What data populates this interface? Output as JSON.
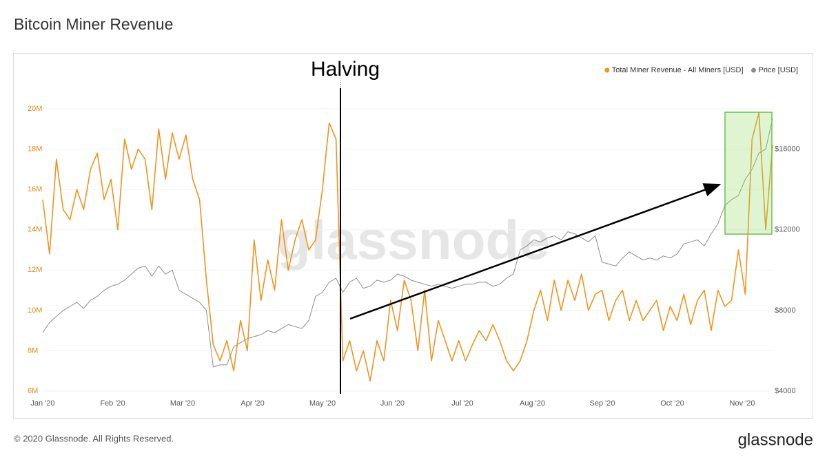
{
  "chart_data": {
    "type": "line",
    "title": "Bitcoin Miner Revenue",
    "annotation": "Halving",
    "watermark": "glassnode",
    "xtick_labels": [
      "Jan '20",
      "Feb '20",
      "Mar '20",
      "Apr '20",
      "May '20",
      "Jun '20",
      "Jul '20",
      "Aug '20",
      "Sep '20",
      "Oct '20",
      "Nov '20"
    ],
    "series": [
      {
        "name": "Total Miner Revenue - All Miners [USD]",
        "color": "#f0931c",
        "axis": "y",
        "values": [
          15500000,
          12800000,
          17500000,
          15000000,
          14500000,
          16000000,
          15000000,
          17000000,
          17800000,
          15500000,
          16500000,
          14000000,
          18500000,
          17000000,
          18000000,
          17500000,
          15000000,
          19000000,
          16500000,
          18800000,
          17500000,
          18700000,
          16500000,
          15500000,
          11500000,
          8300000,
          7500000,
          8500000,
          7000000,
          9500000,
          8000000,
          13500000,
          10500000,
          12500000,
          11000000,
          14500000,
          12000000,
          13500000,
          14500000,
          13000000,
          13500000,
          16000000,
          19300000,
          18500000,
          7500000,
          8500000,
          7000000,
          8000000,
          6500000,
          8500000,
          7500000,
          10500000,
          9000000,
          11500000,
          10500000,
          8000000,
          11000000,
          7500000,
          9500000,
          8500000,
          7500000,
          8500000,
          7500000,
          8300000,
          9000000,
          8500000,
          9300000,
          8500000,
          7500000,
          7000000,
          7500000,
          8500000,
          10000000,
          11000000,
          9500000,
          11500000,
          10000000,
          11500000,
          10500000,
          11800000,
          10000000,
          10800000,
          11000000,
          9500000,
          10500000,
          11000000,
          9500000,
          10500000,
          9500000,
          10000000,
          10500000,
          9000000,
          10200000,
          9500000,
          10800000,
          9300000,
          10500000,
          11000000,
          9000000,
          11000000,
          10200000,
          10500000,
          13000000,
          10800000,
          18500000,
          19800000,
          14000000,
          18200000
        ]
      },
      {
        "name": "Price [USD]",
        "color": "#8c8c8c",
        "axis": "y2",
        "values": [
          6900,
          7400,
          7700,
          8000,
          8200,
          8400,
          8100,
          8500,
          8700,
          9000,
          9200,
          9300,
          9500,
          9800,
          10100,
          10200,
          9700,
          10200,
          9800,
          10000,
          9000,
          8800,
          8600,
          8400,
          8000,
          5200,
          5300,
          5300,
          6200,
          6400,
          6600,
          6700,
          6800,
          7000,
          6900,
          7100,
          7300,
          7200,
          7100,
          7500,
          8700,
          8900,
          9400,
          9600,
          8900,
          9400,
          9600,
          9100,
          9200,
          9500,
          9400,
          9500,
          9800,
          9700,
          9500,
          9400,
          9300,
          9200,
          9300,
          9200,
          9100,
          9200,
          9300,
          9300,
          9400,
          9400,
          9200,
          9300,
          9600,
          9800,
          11000,
          11200,
          11500,
          11400,
          11600,
          11700,
          11500,
          11900,
          11800,
          11600,
          11400,
          11700,
          10400,
          10300,
          10200,
          10600,
          10900,
          10700,
          10500,
          10600,
          10500,
          10700,
          10600,
          10800,
          11300,
          11400,
          11500,
          11200,
          11800,
          12300,
          13200,
          13500,
          13700,
          14500,
          15000,
          15800,
          16000,
          17500
        ]
      }
    ],
    "ylim": [
      6000000,
      20000000
    ],
    "yticks": [
      {
        "value": 6000000,
        "label": "6M"
      },
      {
        "value": 8000000,
        "label": "8M"
      },
      {
        "value": 10000000,
        "label": "10M"
      },
      {
        "value": 12000000,
        "label": "12M"
      },
      {
        "value": 14000000,
        "label": "14M"
      },
      {
        "value": 16000000,
        "label": "16M"
      },
      {
        "value": 18000000,
        "label": "18M"
      },
      {
        "value": 20000000,
        "label": "20M"
      }
    ],
    "y2lim": [
      4000,
      18000
    ],
    "y2ticks": [
      {
        "value": 4000,
        "label": "$4000"
      },
      {
        "value": 8000,
        "label": "$8000"
      },
      {
        "value": 12000,
        "label": "$12000"
      },
      {
        "value": 16000,
        "label": "$16000"
      }
    ],
    "grid": true,
    "legend": "top-right"
  },
  "footer": {
    "copyright": "© 2020 Glassnode. All Rights Reserved.",
    "logo": "glassnode"
  }
}
